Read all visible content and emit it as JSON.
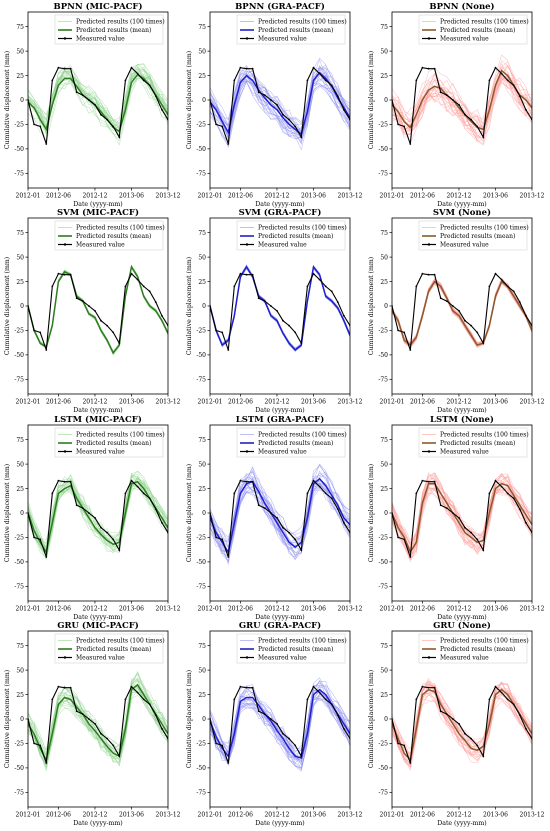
{
  "x_ticks": [
    "2012-01",
    "2012-06",
    "2012-12",
    "2013-06",
    "2013-12"
  ],
  "y_ticks": [
    "75",
    "50",
    "25",
    "0",
    "-25",
    "-50",
    "-75"
  ],
  "xlabel": "Date (yyyy-mm)",
  "ylabel": "Cumulative displacement (mm)",
  "legend": {
    "ensemble": "Predicted results (100 times)",
    "mean": "Predicted results (mean)",
    "measured": "Measured value"
  },
  "colors": {
    "mic_ensemble": "#8fd48f",
    "mic_mean": "#2e7d1e",
    "gra_ensemble": "#8c8cf0",
    "gra_mean": "#2020d0",
    "none_ensemble": "#ff9a9a",
    "none_mean": "#8a5a2a",
    "measured": "#000000"
  },
  "panels": [
    {
      "title": "BPNN (MIC-PACF)",
      "model": "BPNN",
      "variant": "mic",
      "spread": 14
    },
    {
      "title": "BPNN (GRA-PACF)",
      "model": "BPNN",
      "variant": "gra",
      "spread": 14
    },
    {
      "title": "BPNN (None)",
      "model": "BPNN",
      "variant": "none",
      "spread": 18
    },
    {
      "title": "SVM (MIC-PACF)",
      "model": "SVM",
      "variant": "mic",
      "spread": 2
    },
    {
      "title": "SVM (GRA-PACF)",
      "model": "SVM",
      "variant": "gra",
      "spread": 2
    },
    {
      "title": "SVM (None)",
      "model": "SVM",
      "variant": "none",
      "spread": 3
    },
    {
      "title": "LSTM (MIC-PACF)",
      "model": "LSTM",
      "variant": "mic",
      "spread": 12
    },
    {
      "title": "LSTM (GRA-PACF)",
      "model": "LSTM",
      "variant": "gra",
      "spread": 14
    },
    {
      "title": "LSTM (None)",
      "model": "LSTM",
      "variant": "none",
      "spread": 12
    },
    {
      "title": "GRU (MIC-PACF)",
      "model": "GRU",
      "variant": "mic",
      "spread": 13
    },
    {
      "title": "GRU (GRA-PACF)",
      "model": "GRU",
      "variant": "gra",
      "spread": 13
    },
    {
      "title": "GRU (None)",
      "model": "GRU",
      "variant": "none",
      "spread": 13
    }
  ],
  "chart_data": {
    "type": "line",
    "ylim": [
      -90,
      90
    ],
    "x": [
      "2012-01",
      "2012-02",
      "2012-03",
      "2012-04",
      "2012-05",
      "2012-06",
      "2012-07",
      "2012-08",
      "2012-09",
      "2012-10",
      "2012-11",
      "2012-12",
      "2013-01",
      "2013-02",
      "2013-03",
      "2013-04",
      "2013-05",
      "2013-06",
      "2013-07",
      "2013-08",
      "2013-09",
      "2013-10",
      "2013-11",
      "2013-12"
    ],
    "measured": [
      0,
      -25,
      -27,
      -45,
      20,
      33,
      32,
      32,
      8,
      5,
      0,
      -5,
      -15,
      -20,
      -27,
      -38,
      20,
      33,
      27,
      20,
      15,
      4,
      -10,
      -20
    ],
    "means": {
      "BPNN": {
        "mic": [
          -2,
          -8,
          -20,
          -30,
          -5,
          15,
          22,
          22,
          14,
          5,
          0,
          -5,
          -12,
          -20,
          -28,
          -32,
          -10,
          18,
          26,
          22,
          15,
          5,
          -5,
          -15
        ],
        "gra": [
          -2,
          -10,
          -22,
          -33,
          -5,
          18,
          25,
          20,
          10,
          2,
          -5,
          -10,
          -18,
          -25,
          -30,
          -35,
          -12,
          20,
          28,
          22,
          14,
          2,
          -8,
          -18
        ],
        "none": [
          -5,
          -12,
          -22,
          -28,
          -15,
          0,
          10,
          14,
          12,
          5,
          0,
          -8,
          -15,
          -22,
          -28,
          -30,
          -10,
          15,
          30,
          25,
          15,
          5,
          0,
          -8
        ]
      },
      "SVM": {
        "mic": [
          0,
          -25,
          -38,
          -42,
          -20,
          25,
          35,
          32,
          10,
          5,
          -8,
          -12,
          -25,
          -35,
          -48,
          -40,
          10,
          40,
          30,
          10,
          0,
          -5,
          -15,
          -28
        ],
        "gra": [
          0,
          -25,
          -40,
          -35,
          -10,
          30,
          40,
          30,
          10,
          5,
          -10,
          -15,
          -28,
          -38,
          -45,
          -40,
          5,
          40,
          32,
          10,
          5,
          -2,
          -15,
          -30
        ],
        "none": [
          -5,
          -15,
          -35,
          -40,
          -32,
          -10,
          15,
          25,
          20,
          8,
          -5,
          -10,
          -20,
          -30,
          -40,
          -38,
          -20,
          10,
          25,
          20,
          10,
          0,
          -10,
          -25
        ]
      },
      "LSTM": {
        "mic": [
          0,
          -18,
          -30,
          -40,
          -10,
          20,
          25,
          28,
          15,
          5,
          -5,
          -15,
          -22,
          -28,
          -32,
          -30,
          0,
          30,
          32,
          25,
          15,
          5,
          -5,
          -15
        ],
        "gra": [
          -5,
          -20,
          -30,
          -40,
          -10,
          20,
          30,
          32,
          22,
          10,
          0,
          -10,
          -20,
          -30,
          -35,
          -30,
          -5,
          30,
          35,
          28,
          18,
          8,
          -5,
          -12
        ],
        "none": [
          0,
          -15,
          -25,
          -40,
          -30,
          10,
          30,
          30,
          20,
          10,
          0,
          -10,
          -20,
          -25,
          -30,
          -28,
          0,
          25,
          30,
          28,
          18,
          8,
          -2,
          -12
        ]
      },
      "GRU": {
        "mic": [
          -5,
          -15,
          -30,
          -42,
          -15,
          15,
          22,
          20,
          12,
          5,
          -5,
          -12,
          -20,
          -28,
          -35,
          -38,
          -10,
          30,
          35,
          25,
          15,
          5,
          -5,
          -15
        ],
        "gra": [
          -2,
          -18,
          -30,
          -38,
          -15,
          18,
          22,
          22,
          14,
          5,
          -2,
          -12,
          -20,
          -30,
          -38,
          -40,
          -15,
          25,
          30,
          25,
          15,
          5,
          -5,
          -15
        ],
        "none": [
          -5,
          -20,
          -35,
          -42,
          -10,
          25,
          30,
          28,
          15,
          5,
          -5,
          -15,
          -22,
          -30,
          -32,
          -28,
          -5,
          25,
          30,
          25,
          15,
          5,
          -5,
          -15
        ]
      }
    }
  }
}
